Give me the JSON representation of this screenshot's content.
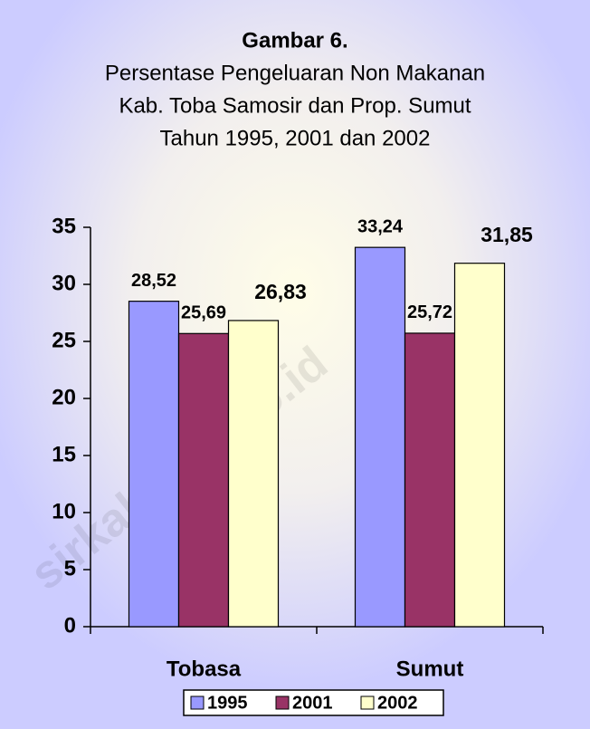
{
  "chart_data": {
    "type": "bar",
    "title": "Gambar 6.",
    "subtitle": [
      "Persentase Pengeluaran Non Makanan",
      "Kab. Toba Samosir dan Prop. Sumut",
      "Tahun 1995, 2001 dan 2002"
    ],
    "categories": [
      "Tobasa",
      "Sumut"
    ],
    "series": [
      {
        "name": "1995",
        "color": "#9999ff",
        "values": [
          28.52,
          33.24
        ],
        "value_labels": [
          "28,52",
          "33,24"
        ]
      },
      {
        "name": "2001",
        "color": "#993366",
        "values": [
          25.69,
          25.72
        ],
        "value_labels": [
          "25,69",
          "25,72"
        ]
      },
      {
        "name": "2002",
        "color": "#ffffcc",
        "values": [
          26.83,
          31.85
        ],
        "value_labels": [
          "26,83",
          "31,85"
        ]
      }
    ],
    "ylim": [
      0,
      35
    ],
    "yticks": [
      0,
      5,
      10,
      15,
      20,
      25,
      30,
      35
    ],
    "legend": "bottom",
    "watermark": "sirkab.bps.go.id"
  }
}
